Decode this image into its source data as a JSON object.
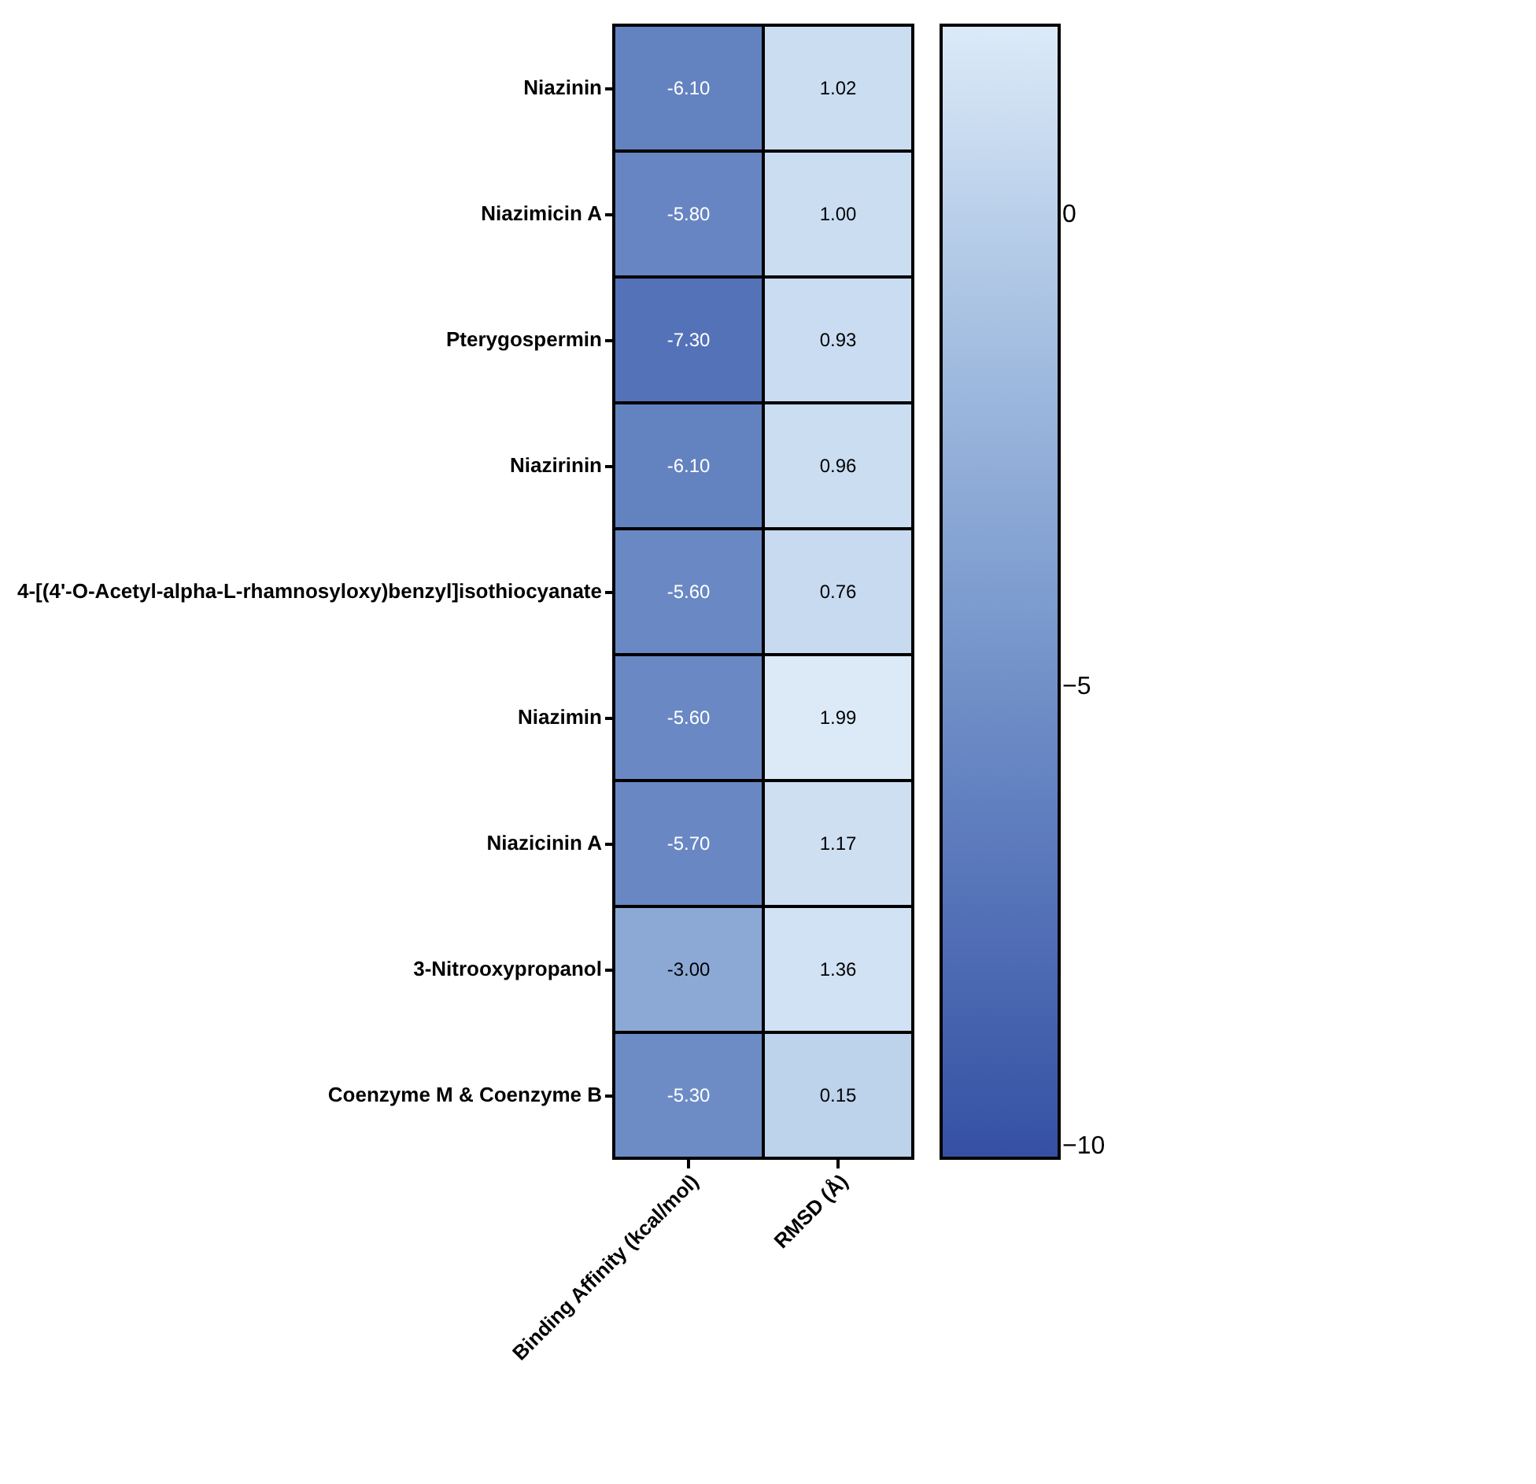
{
  "chart_data": {
    "type": "heatmap",
    "categories": [
      "Binding Affinity (kcal/mol)",
      "RMSD (Å)"
    ],
    "y_categories": [
      "Niazinin",
      "Niazimicin A",
      "Pterygospermin",
      "Niazirinin",
      "4-[(4'-O-Acetyl-alpha-L-rhamnosyloxy)benzyl]isothiocyanate",
      "Niazimin",
      "Niazicinin A",
      "3-Nitrooxypropanol",
      "Coenzyme M & Coenzyme B"
    ],
    "cells": [
      [
        -6.1,
        1.02
      ],
      [
        -5.8,
        1.0
      ],
      [
        -7.3,
        0.93
      ],
      [
        -6.1,
        0.96
      ],
      [
        -5.6,
        0.76
      ],
      [
        -5.6,
        1.99
      ],
      [
        -5.7,
        1.17
      ],
      [
        -3.0,
        1.36
      ],
      [
        -5.3,
        0.15
      ]
    ],
    "cell_labels": [
      [
        "-6.10",
        "1.02"
      ],
      [
        "-5.80",
        "1.00"
      ],
      [
        "-7.30",
        "0.93"
      ],
      [
        "-6.10",
        "0.96"
      ],
      [
        "-5.60",
        "0.76"
      ],
      [
        "-5.60",
        "1.99"
      ],
      [
        "-5.70",
        "1.17"
      ],
      [
        "-3.00",
        "1.36"
      ],
      [
        "-5.30",
        "0.15"
      ]
    ],
    "clim": [
      -10,
      2
    ],
    "cticks": [
      -10,
      -5,
      0
    ]
  }
}
